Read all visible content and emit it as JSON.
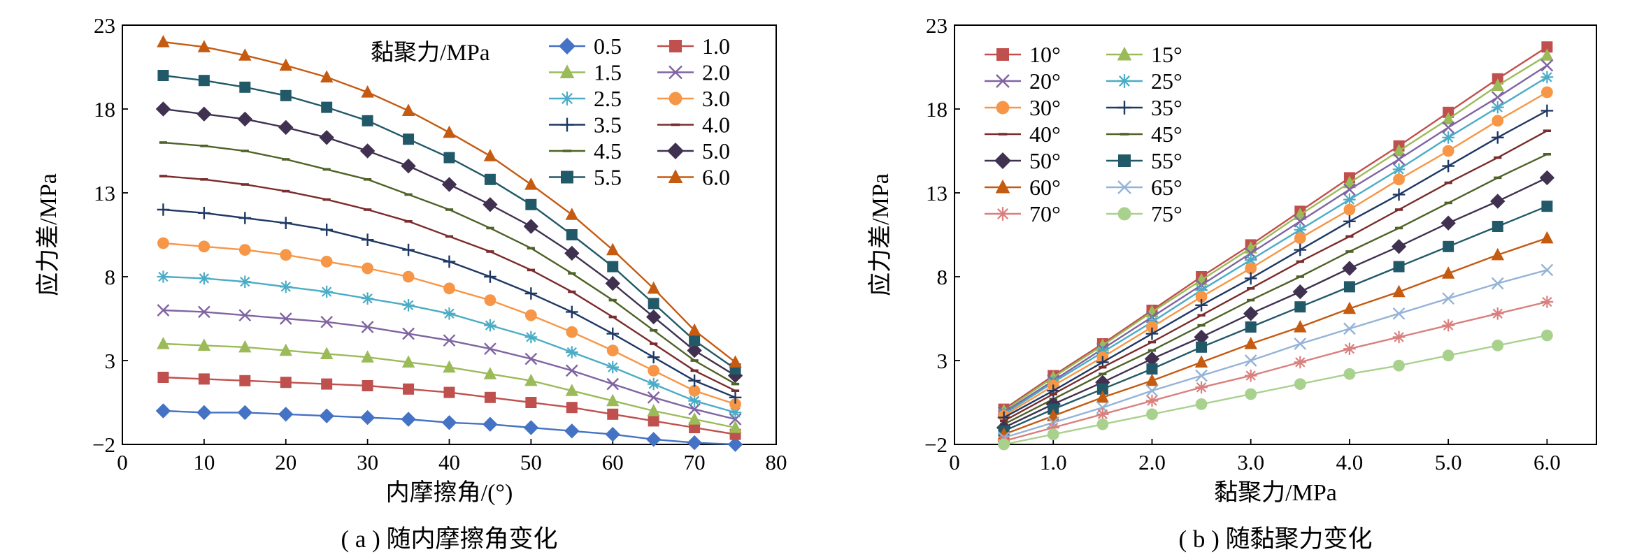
{
  "chart_data": [
    {
      "type": "line",
      "caption": "( a ) 随内摩擦角变化",
      "title": "",
      "xlabel": "内摩擦角/(°)",
      "ylabel": "应力差/MPa",
      "xlim": [
        0,
        80
      ],
      "ylim": [
        -2,
        23
      ],
      "xticks": [
        0,
        10,
        20,
        30,
        40,
        50,
        60,
        70,
        80
      ],
      "yticks": [
        -2,
        3,
        8,
        13,
        18,
        23
      ],
      "xtick_labels": [
        "0",
        "10",
        "20",
        "30",
        "40",
        "50",
        "60",
        "70",
        "80"
      ],
      "ytick_labels": [
        "−2",
        "3",
        "8",
        "13",
        "18",
        "23"
      ],
      "grid": false,
      "legend_title": "黏聚力/MPa",
      "legend_position": "top-right",
      "x": [
        5,
        10,
        15,
        20,
        25,
        30,
        35,
        40,
        45,
        50,
        55,
        60,
        65,
        70,
        75
      ],
      "series": [
        {
          "name": "0.5",
          "color": "#4472C4",
          "marker": "diamond",
          "values": [
            0.0,
            -0.1,
            -0.1,
            -0.2,
            -0.3,
            -0.4,
            -0.5,
            -0.7,
            -0.8,
            -1.0,
            -1.2,
            -1.4,
            -1.7,
            -1.9,
            -2.0
          ]
        },
        {
          "name": "1.0",
          "color": "#C0504D",
          "marker": "square",
          "values": [
            2.0,
            1.9,
            1.8,
            1.7,
            1.6,
            1.5,
            1.3,
            1.1,
            0.8,
            0.5,
            0.2,
            -0.2,
            -0.6,
            -1.0,
            -1.4
          ]
        },
        {
          "name": "1.5",
          "color": "#9BBB59",
          "marker": "triangle",
          "values": [
            4.0,
            3.9,
            3.8,
            3.6,
            3.4,
            3.2,
            2.9,
            2.6,
            2.2,
            1.8,
            1.2,
            0.6,
            0.0,
            -0.5,
            -1.0
          ]
        },
        {
          "name": "2.0",
          "color": "#8064A2",
          "marker": "x",
          "values": [
            6.0,
            5.9,
            5.7,
            5.5,
            5.3,
            5.0,
            4.6,
            4.2,
            3.7,
            3.1,
            2.4,
            1.6,
            0.8,
            0.1,
            -0.5
          ]
        },
        {
          "name": "2.5",
          "color": "#4BACC6",
          "marker": "star",
          "values": [
            8.0,
            7.9,
            7.7,
            7.4,
            7.1,
            6.7,
            6.3,
            5.8,
            5.1,
            4.4,
            3.5,
            2.6,
            1.6,
            0.6,
            -0.1
          ]
        },
        {
          "name": "3.0",
          "color": "#F79646",
          "marker": "circle",
          "values": [
            10.0,
            9.8,
            9.6,
            9.3,
            8.9,
            8.5,
            8.0,
            7.3,
            6.6,
            5.7,
            4.7,
            3.6,
            2.4,
            1.2,
            0.4
          ]
        },
        {
          "name": "3.5",
          "color": "#1F3864",
          "marker": "plus",
          "values": [
            12.0,
            11.8,
            11.5,
            11.2,
            10.8,
            10.2,
            9.6,
            8.9,
            8.0,
            7.0,
            5.9,
            4.6,
            3.2,
            1.8,
            0.8
          ]
        },
        {
          "name": "4.0",
          "color": "#7B2C2C",
          "marker": "dash",
          "values": [
            14.0,
            13.8,
            13.5,
            13.1,
            12.6,
            12.0,
            11.3,
            10.4,
            9.5,
            8.4,
            7.1,
            5.6,
            4.0,
            2.4,
            1.2
          ]
        },
        {
          "name": "4.5",
          "color": "#4F6228",
          "marker": "dash",
          "values": [
            16.0,
            15.8,
            15.5,
            15.0,
            14.4,
            13.8,
            12.9,
            12.0,
            10.9,
            9.7,
            8.2,
            6.6,
            4.8,
            3.0,
            1.6
          ]
        },
        {
          "name": "5.0",
          "color": "#403151",
          "marker": "diamond",
          "values": [
            18.0,
            17.7,
            17.4,
            16.9,
            16.3,
            15.5,
            14.6,
            13.5,
            12.3,
            11.0,
            9.4,
            7.6,
            5.6,
            3.6,
            2.1
          ]
        },
        {
          "name": "5.5",
          "color": "#215968",
          "marker": "square",
          "values": [
            20.0,
            19.7,
            19.3,
            18.8,
            18.1,
            17.3,
            16.2,
            15.1,
            13.8,
            12.3,
            10.5,
            8.6,
            6.4,
            4.2,
            2.5
          ]
        },
        {
          "name": "6.0",
          "color": "#C55A11",
          "marker": "triangle",
          "values": [
            22.0,
            21.7,
            21.2,
            20.6,
            19.9,
            19.0,
            17.9,
            16.6,
            15.2,
            13.5,
            11.7,
            9.6,
            7.3,
            4.8,
            2.9
          ]
        }
      ]
    },
    {
      "type": "line",
      "caption": "( b ) 随黏聚力变化",
      "title": "",
      "xlabel": "黏聚力/MPa",
      "ylabel": "应力差/MPa",
      "xlim": [
        0,
        6.5
      ],
      "ylim": [
        -2,
        23
      ],
      "xticks": [
        0,
        1,
        2,
        3,
        4,
        5,
        6
      ],
      "yticks": [
        -2,
        3,
        8,
        13,
        18,
        23
      ],
      "xtick_labels": [
        "0",
        "1.0",
        "2.0",
        "3.0",
        "4.0",
        "5.0",
        "6.0"
      ],
      "ytick_labels": [
        "−2",
        "3",
        "8",
        "13",
        "18",
        "23"
      ],
      "grid": false,
      "legend_title": "",
      "legend_position": "top-left",
      "x": [
        0.5,
        1.0,
        1.5,
        2.0,
        2.5,
        3.0,
        3.5,
        4.0,
        4.5,
        5.0,
        5.5,
        6.0
      ],
      "series": [
        {
          "name": "10°",
          "color": "#C0504D",
          "marker": "square",
          "values": [
            0.1,
            2.1,
            4.0,
            6.0,
            8.0,
            9.9,
            11.9,
            13.9,
            15.8,
            17.8,
            19.8,
            21.7
          ]
        },
        {
          "name": "15°",
          "color": "#9BBB59",
          "marker": "triangle",
          "values": [
            0.0,
            2.0,
            3.9,
            5.9,
            7.8,
            9.7,
            11.7,
            13.6,
            15.5,
            17.4,
            19.4,
            21.2
          ]
        },
        {
          "name": "20°",
          "color": "#8064A2",
          "marker": "x",
          "values": [
            -0.1,
            1.8,
            3.7,
            5.6,
            7.5,
            9.4,
            11.3,
            13.2,
            15.0,
            16.9,
            18.7,
            20.6
          ]
        },
        {
          "name": "25°",
          "color": "#4BACC6",
          "marker": "star",
          "values": [
            -0.2,
            1.7,
            3.5,
            5.3,
            7.2,
            9.0,
            10.8,
            12.6,
            14.4,
            16.3,
            18.1,
            19.9
          ]
        },
        {
          "name": "30°",
          "color": "#F79646",
          "marker": "circle",
          "values": [
            -0.3,
            1.5,
            3.2,
            5.0,
            6.8,
            8.5,
            10.3,
            12.0,
            13.8,
            15.5,
            17.3,
            19.0
          ]
        },
        {
          "name": "35°",
          "color": "#1F3864",
          "marker": "plus",
          "values": [
            -0.4,
            1.2,
            2.9,
            4.6,
            6.3,
            7.9,
            9.6,
            11.3,
            12.9,
            14.6,
            16.3,
            17.9
          ]
        },
        {
          "name": "40°",
          "color": "#7B2C2C",
          "marker": "dash",
          "values": [
            -0.6,
            1.0,
            2.6,
            4.1,
            5.7,
            7.3,
            8.9,
            10.4,
            12.0,
            13.6,
            15.1,
            16.7
          ]
        },
        {
          "name": "45°",
          "color": "#4F6228",
          "marker": "dash",
          "values": [
            -0.8,
            0.7,
            2.2,
            3.6,
            5.1,
            6.6,
            8.0,
            9.5,
            10.9,
            12.4,
            13.9,
            15.3
          ]
        },
        {
          "name": "50°",
          "color": "#403151",
          "marker": "diamond",
          "values": [
            -1.0,
            0.4,
            1.7,
            3.1,
            4.4,
            5.8,
            7.1,
            8.5,
            9.8,
            11.2,
            12.5,
            13.9
          ]
        },
        {
          "name": "55°",
          "color": "#215968",
          "marker": "square",
          "values": [
            -1.2,
            0.1,
            1.3,
            2.5,
            3.8,
            5.0,
            6.2,
            7.4,
            8.6,
            9.8,
            11.0,
            12.2
          ]
        },
        {
          "name": "60°",
          "color": "#C55A11",
          "marker": "triangle",
          "values": [
            -1.4,
            -0.3,
            0.8,
            1.8,
            2.9,
            4.0,
            5.0,
            6.1,
            7.1,
            8.2,
            9.3,
            10.3
          ]
        },
        {
          "name": "65°",
          "color": "#95B3D7",
          "marker": "x",
          "values": [
            -1.6,
            -0.7,
            0.2,
            1.2,
            2.1,
            3.0,
            4.0,
            4.9,
            5.8,
            6.7,
            7.6,
            8.4
          ]
        },
        {
          "name": "70°",
          "color": "#D9807E",
          "marker": "star",
          "values": [
            -1.8,
            -1.0,
            -0.2,
            0.6,
            1.4,
            2.1,
            2.9,
            3.7,
            4.4,
            5.1,
            5.8,
            6.5
          ]
        },
        {
          "name": "75°",
          "color": "#A9D18E",
          "marker": "circle",
          "values": [
            -2.0,
            -1.4,
            -0.8,
            -0.2,
            0.4,
            1.0,
            1.6,
            2.2,
            2.7,
            3.3,
            3.9,
            4.5
          ]
        }
      ]
    }
  ]
}
